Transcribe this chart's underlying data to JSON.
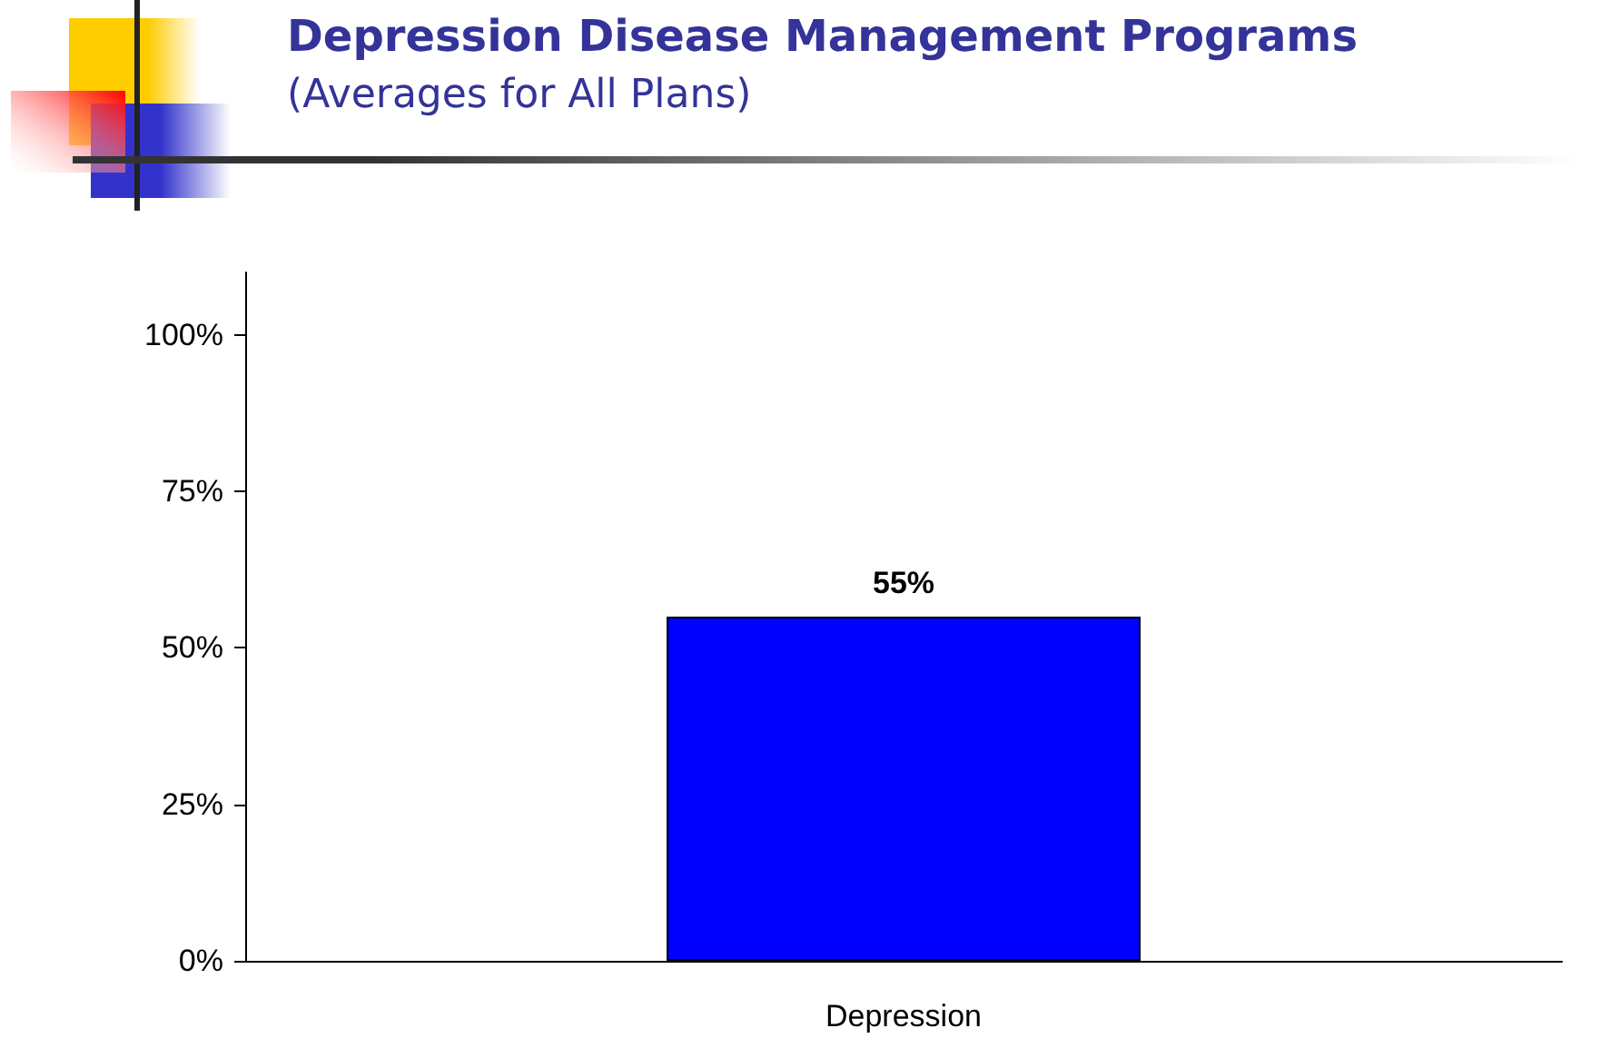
{
  "chart_data": {
    "type": "bar",
    "title": "Depression Disease Management Programs",
    "subtitle": "(Averages for All Plans)",
    "categories": [
      "Depression"
    ],
    "values": [
      55
    ],
    "value_labels": [
      "55%"
    ],
    "color": "#0000ff",
    "ylim": [
      0,
      110
    ],
    "yticks": [
      {
        "value": 0,
        "label": "0%"
      },
      {
        "value": 25,
        "label": "25%"
      },
      {
        "value": 50,
        "label": "50%"
      },
      {
        "value": 75,
        "label": "75%"
      },
      {
        "value": 100,
        "label": "100%"
      }
    ],
    "grid": false
  }
}
